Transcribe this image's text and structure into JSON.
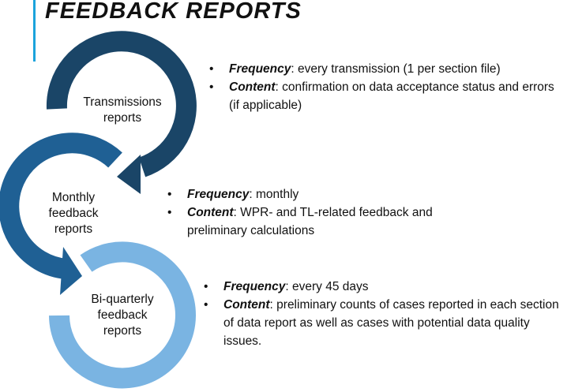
{
  "title": "FEEDBACK REPORTS",
  "colors": {
    "accent": "#1ba3dc",
    "dark": "#1a4567",
    "mid": "#1f6094",
    "light": "#7ab4e2"
  },
  "cycles": [
    {
      "label": "Transmissions reports",
      "frequency_label": "Frequency",
      "frequency": ": every transmission (1 per section file)",
      "content_label": "Content",
      "content": ": confirmation on data acceptance status and errors (if applicable)"
    },
    {
      "label": "Monthly feedback reports",
      "frequency_label": "Frequency",
      "frequency": ": monthly",
      "content_label": "Content",
      "content": ": WPR- and TL-related feedback and preliminary calculations"
    },
    {
      "label": "Bi-quarterly feedback reports",
      "frequency_label": "Frequency",
      "frequency": ": every 45 days",
      "content_label": "Content",
      "content": ": preliminary counts of cases reported in each section of data report as well as cases with potential data quality issues."
    }
  ],
  "bullet": "•"
}
